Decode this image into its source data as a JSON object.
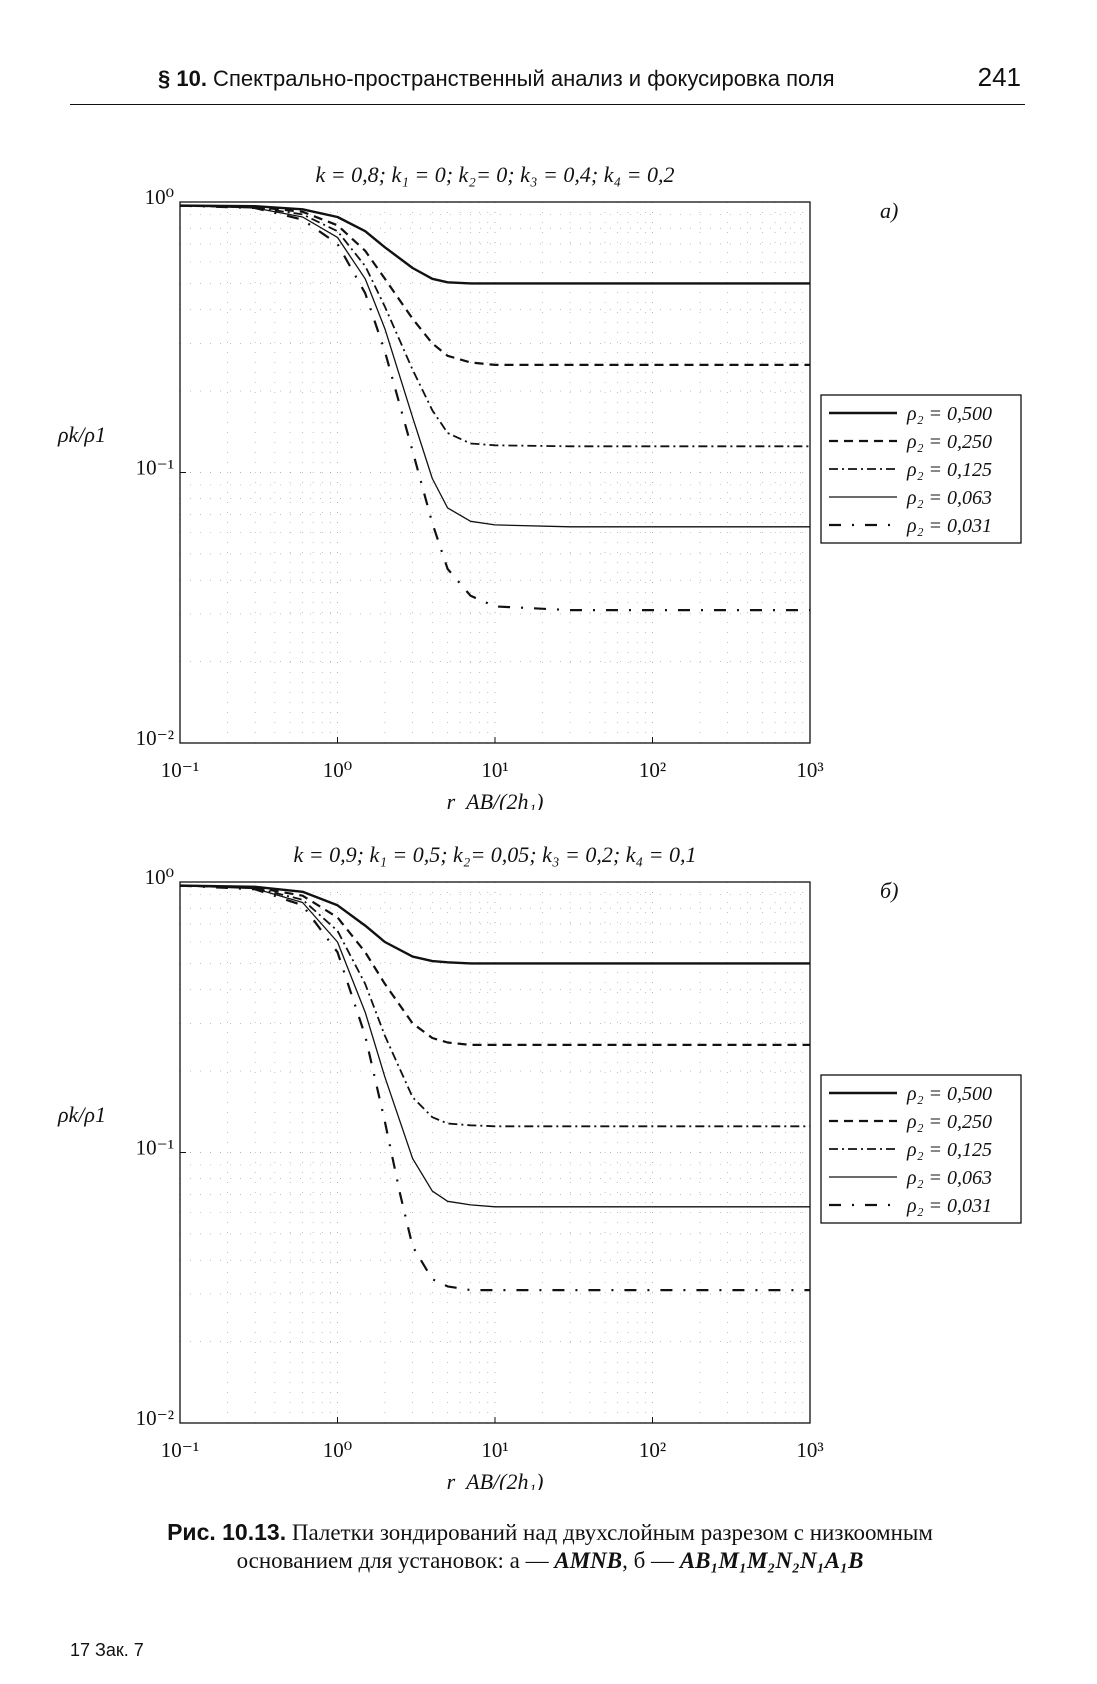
{
  "header": {
    "section_num": "§ 10.",
    "section_title": " Спектрально-пространственный анализ и фокусировка поля",
    "page_number": "241"
  },
  "caption": {
    "label": "Рис. 10.13.",
    "line1": " Палетки зондирований над двухслойным разрезом с низкоомным",
    "line2_prefix": "основанием для установок: ",
    "line2_a": "а — ",
    "line2_formula_a": "AMNB",
    "line2_sep": ", б — ",
    "line2_formula_b": "AB₁M₁M₂N₂N₁A₁B"
  },
  "footer": {
    "signature": "17 Зак. 7"
  },
  "chart_data": [
    {
      "panel_label": "а)",
      "type": "line",
      "title": "k = 0,8; k₁ = 0; k₂= 0; k₃ = 0,4; k₄ = 0,2",
      "xlabel": "r_AB/(2h₁)",
      "ylabel": "ρk/ρ1",
      "xscale": "log",
      "yscale": "log",
      "xlim": [
        0.1,
        1000
      ],
      "ylim": [
        0.01,
        1
      ],
      "xticks": [
        "10⁻¹",
        "10⁰",
        "10¹",
        "10²",
        "10³"
      ],
      "yticks": [
        "10⁻²",
        "10⁻¹",
        "10⁰"
      ],
      "grid": true,
      "legend_position": "right",
      "series": [
        {
          "name": "ρ₂ = 0,500",
          "style": "solid-thick",
          "x": [
            0.1,
            0.3,
            0.6,
            1,
            1.5,
            2,
            3,
            4,
            5,
            7,
            10,
            30,
            100,
            1000
          ],
          "y": [
            0.97,
            0.965,
            0.94,
            0.88,
            0.78,
            0.68,
            0.57,
            0.52,
            0.505,
            0.5,
            0.5,
            0.5,
            0.5,
            0.5
          ]
        },
        {
          "name": "ρ₂ = 0,250",
          "style": "dashed",
          "x": [
            0.1,
            0.3,
            0.6,
            1,
            1.5,
            2,
            3,
            4,
            5,
            7,
            10,
            30,
            100,
            1000
          ],
          "y": [
            0.97,
            0.96,
            0.92,
            0.82,
            0.66,
            0.52,
            0.37,
            0.3,
            0.27,
            0.255,
            0.25,
            0.25,
            0.25,
            0.25
          ]
        },
        {
          "name": "ρ₂ = 0,125",
          "style": "dashdot",
          "x": [
            0.1,
            0.3,
            0.6,
            1,
            1.5,
            2,
            3,
            4,
            5,
            7,
            10,
            30,
            100,
            1000
          ],
          "y": [
            0.97,
            0.955,
            0.9,
            0.78,
            0.58,
            0.41,
            0.24,
            0.17,
            0.14,
            0.128,
            0.126,
            0.125,
            0.125,
            0.125
          ]
        },
        {
          "name": "ρ₂ = 0,063",
          "style": "solid-thin",
          "x": [
            0.1,
            0.3,
            0.6,
            1,
            1.5,
            2,
            3,
            4,
            5,
            7,
            10,
            30,
            100,
            1000
          ],
          "y": [
            0.97,
            0.95,
            0.88,
            0.74,
            0.52,
            0.34,
            0.16,
            0.095,
            0.074,
            0.066,
            0.064,
            0.063,
            0.063,
            0.063
          ]
        },
        {
          "name": "ρ₂ = 0,031",
          "style": "longdash-dot",
          "x": [
            0.1,
            0.3,
            0.6,
            1,
            1.5,
            2,
            3,
            4,
            5,
            7,
            10,
            30,
            100,
            1000
          ],
          "y": [
            0.97,
            0.95,
            0.86,
            0.7,
            0.46,
            0.28,
            0.12,
            0.065,
            0.044,
            0.035,
            0.032,
            0.031,
            0.031,
            0.031
          ]
        }
      ]
    },
    {
      "panel_label": "б)",
      "type": "line",
      "title": "k = 0,9; k₁ = 0,5; k₂= 0,05; k₃ = 0,2; k₄ = 0,1",
      "xlabel": "r_AB/(2h₁)",
      "ylabel": "ρk/ρ1",
      "xscale": "log",
      "yscale": "log",
      "xlim": [
        0.1,
        1000
      ],
      "ylim": [
        0.01,
        1
      ],
      "xticks": [
        "10⁻¹",
        "10⁰",
        "10¹",
        "10²",
        "10³"
      ],
      "yticks": [
        "10⁻²",
        "10⁻¹",
        "10⁰"
      ],
      "grid": true,
      "legend_position": "right",
      "series": [
        {
          "name": "ρ₂ = 0,500",
          "style": "solid-thick",
          "x": [
            0.1,
            0.3,
            0.6,
            1,
            1.5,
            2,
            3,
            4,
            5,
            7,
            10,
            30,
            100,
            1000
          ],
          "y": [
            0.97,
            0.96,
            0.92,
            0.82,
            0.69,
            0.6,
            0.53,
            0.51,
            0.505,
            0.5,
            0.5,
            0.5,
            0.5,
            0.5
          ]
        },
        {
          "name": "ρ₂ = 0,250",
          "style": "dashed",
          "x": [
            0.1,
            0.3,
            0.6,
            1,
            1.5,
            2,
            3,
            4,
            5,
            7,
            10,
            30,
            100,
            1000
          ],
          "y": [
            0.97,
            0.955,
            0.89,
            0.74,
            0.55,
            0.42,
            0.3,
            0.265,
            0.255,
            0.25,
            0.25,
            0.25,
            0.25,
            0.25
          ]
        },
        {
          "name": "ρ₂ = 0,125",
          "style": "dashdot",
          "x": [
            0.1,
            0.3,
            0.6,
            1,
            1.5,
            2,
            3,
            4,
            5,
            7,
            10,
            30,
            100,
            1000
          ],
          "y": [
            0.97,
            0.95,
            0.86,
            0.66,
            0.42,
            0.27,
            0.16,
            0.135,
            0.128,
            0.126,
            0.125,
            0.125,
            0.125,
            0.125
          ]
        },
        {
          "name": "ρ₂ = 0,063",
          "style": "solid-thin",
          "x": [
            0.1,
            0.3,
            0.6,
            1,
            1.5,
            2,
            3,
            4,
            5,
            7,
            10,
            30,
            100,
            1000
          ],
          "y": [
            0.97,
            0.945,
            0.84,
            0.6,
            0.33,
            0.19,
            0.095,
            0.072,
            0.066,
            0.064,
            0.063,
            0.063,
            0.063,
            0.063
          ]
        },
        {
          "name": "ρ₂ = 0,031",
          "style": "longdash-dot",
          "x": [
            0.1,
            0.3,
            0.6,
            1,
            1.5,
            2,
            2.5,
            3,
            4,
            5,
            7,
            10,
            30,
            100,
            1000
          ],
          "y": [
            0.97,
            0.94,
            0.82,
            0.55,
            0.27,
            0.13,
            0.07,
            0.045,
            0.034,
            0.032,
            0.031,
            0.031,
            0.031,
            0.031,
            0.031
          ]
        }
      ]
    }
  ]
}
